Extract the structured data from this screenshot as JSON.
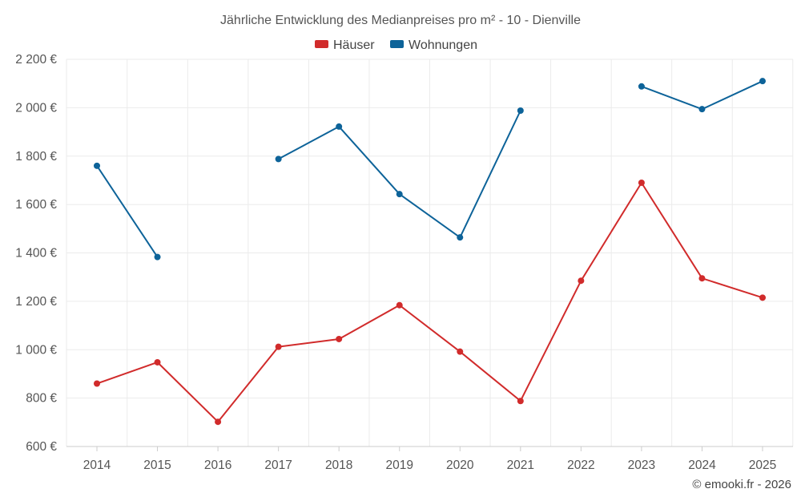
{
  "chart_data": {
    "type": "line",
    "title": "Jährliche Entwicklung des Medianpreises pro m² - 10 - Dienville",
    "categories": [
      "2014",
      "2015",
      "2016",
      "2017",
      "2018",
      "2019",
      "2020",
      "2021",
      "2022",
      "2023",
      "2024",
      "2025"
    ],
    "ylim": [
      600,
      2200
    ],
    "yticks": [
      600,
      800,
      1000,
      1200,
      1400,
      1600,
      1800,
      2000,
      2200
    ],
    "ytick_labels": [
      "600 €",
      "800 €",
      "1 000 €",
      "1 200 €",
      "1 400 €",
      "1 600 €",
      "1 800 €",
      "2 000 €",
      "2 200 €"
    ],
    "grid": true,
    "legend_position": "top-center",
    "series": [
      {
        "name": "Häuser",
        "color": "#d12b2b",
        "values": [
          860,
          948,
          702,
          1012,
          1044,
          1184,
          992,
          788,
          1285,
          1690,
          1295,
          1215
        ]
      },
      {
        "name": "Wohnungen",
        "color": "#0d6399",
        "values": [
          1760,
          1383,
          null,
          1788,
          1922,
          1643,
          1464,
          1988,
          null,
          2088,
          1994,
          2110
        ]
      }
    ]
  },
  "credit": "© emooki.fr - 2026"
}
